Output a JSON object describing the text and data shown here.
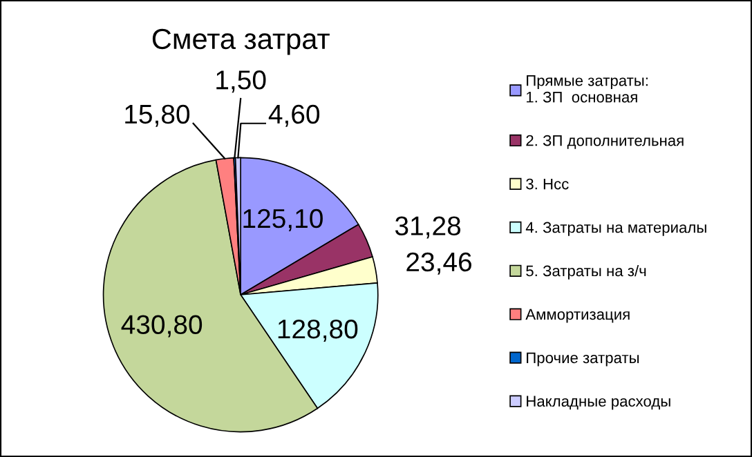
{
  "chart_data": {
    "type": "pie",
    "title": "Смета затрат",
    "categories": [
      "Прямые затраты:\n1. ЗП  основная",
      "2. ЗП дополнительная",
      "3. Нсс",
      "4. Затраты на материалы",
      "5. Затраты на з/ч",
      "Аммортизация",
      "Прочие затраты",
      "Накладные расходы"
    ],
    "values": [
      125.1,
      31.28,
      23.46,
      128.8,
      430.8,
      15.8,
      1.5,
      4.6
    ],
    "value_labels": [
      "125,10",
      "31,28",
      "23,46",
      "128,80",
      "430,80",
      "15,80",
      "1,50",
      "4,60"
    ],
    "colors": [
      "#9999ff",
      "#993366",
      "#ffffcc",
      "#ccffff",
      "#c4d79b",
      "#ff8080",
      "#0066cc",
      "#ccccff"
    ],
    "legend": "right"
  }
}
